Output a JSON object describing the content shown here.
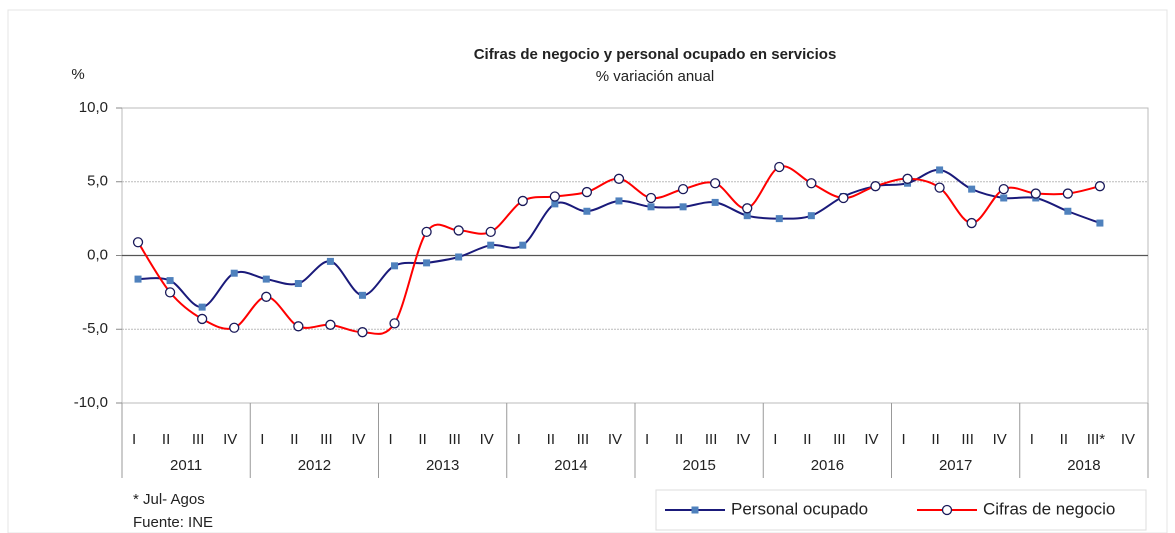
{
  "chart_data": {
    "type": "line",
    "title": "Cifras de negocio y personal ocupado en servicios",
    "subtitle": "% variación anual",
    "y_label": "%",
    "categories": [
      "I",
      "II",
      "III",
      "IV",
      "I",
      "II",
      "III",
      "IV",
      "I",
      "II",
      "III",
      "IV",
      "I",
      "II",
      "III",
      "IV",
      "I",
      "II",
      "III",
      "IV",
      "I",
      "II",
      "III",
      "IV",
      "I",
      "II",
      "III",
      "IV",
      "I",
      "II",
      "III*",
      "IV"
    ],
    "years": [
      "2011",
      "2012",
      "2013",
      "2014",
      "2015",
      "2016",
      "2017",
      "2018"
    ],
    "series": [
      {
        "name": "Personal ocupado",
        "color": "#1a1a7a",
        "marker": "square",
        "values": [
          -1.6,
          -1.7,
          -3.5,
          -1.2,
          -1.6,
          -1.9,
          -0.4,
          -2.7,
          -0.7,
          -0.5,
          -0.1,
          0.7,
          0.7,
          3.5,
          3.0,
          3.7,
          3.3,
          3.3,
          3.6,
          2.7,
          2.5,
          2.7,
          4.0,
          4.7,
          4.9,
          5.8,
          4.5,
          3.9,
          3.9,
          3.0,
          2.2,
          null
        ]
      },
      {
        "name": "Cifras de negocio",
        "color": "#ff0000",
        "marker": "circle",
        "values": [
          0.9,
          -2.5,
          -4.3,
          -4.9,
          -2.8,
          -4.8,
          -4.7,
          -5.2,
          -4.6,
          1.6,
          1.7,
          1.6,
          3.7,
          4.0,
          4.3,
          5.2,
          3.9,
          4.5,
          4.9,
          3.2,
          6.0,
          4.9,
          3.9,
          4.7,
          5.2,
          4.6,
          2.2,
          4.5,
          4.2,
          4.2,
          4.7,
          null
        ]
      }
    ],
    "ylim": [
      -10,
      10
    ],
    "yticks": [
      {
        "value": -10,
        "label": "-10,0"
      },
      {
        "value": -5,
        "label": "-5,0"
      },
      {
        "value": 0,
        "label": "0,0"
      },
      {
        "value": 5,
        "label": "5,0"
      },
      {
        "value": 10,
        "label": "10,0"
      }
    ],
    "grid": true,
    "legend": "bottom-right",
    "notes": [
      "* Jul- Agos",
      "Fuente: INE"
    ]
  }
}
